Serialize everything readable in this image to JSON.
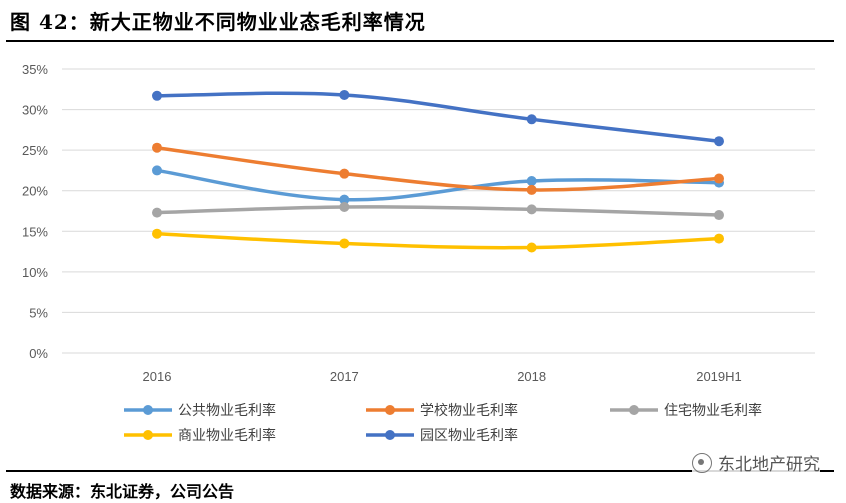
{
  "figure": {
    "title": "图 42：新大正物业不同物业业态毛利率情况",
    "source": "数据来源：东北证券，公司公告",
    "watermark": "东北地产研究"
  },
  "chart_data": {
    "type": "line",
    "title": "",
    "xlabel": "",
    "ylabel": "",
    "categories": [
      "2016",
      "2017",
      "2018",
      "2019H1"
    ],
    "ylim": [
      0,
      35
    ],
    "yticks": [
      "0%",
      "5%",
      "10%",
      "15%",
      "20%",
      "25%",
      "30%",
      "35%"
    ],
    "ytick_values": [
      0,
      5,
      10,
      15,
      20,
      25,
      30,
      35
    ],
    "grid": true,
    "legend_position": "bottom",
    "series": [
      {
        "name": "公共物业毛利率",
        "color": "#5B9BD5",
        "values": [
          22.5,
          18.9,
          21.2,
          21.0
        ]
      },
      {
        "name": "学校物业毛利率",
        "color": "#ED7D31",
        "values": [
          25.3,
          22.1,
          20.1,
          21.5
        ]
      },
      {
        "name": "住宅物业毛利率",
        "color": "#A5A5A5",
        "values": [
          17.3,
          18.0,
          17.7,
          17.0
        ]
      },
      {
        "name": "商业物业毛利率",
        "color": "#FFC000",
        "values": [
          14.7,
          13.5,
          13.0,
          14.1
        ]
      },
      {
        "name": "园区物业毛利率",
        "color": "#4472C4",
        "values": [
          31.7,
          31.8,
          28.8,
          26.1
        ]
      }
    ]
  }
}
